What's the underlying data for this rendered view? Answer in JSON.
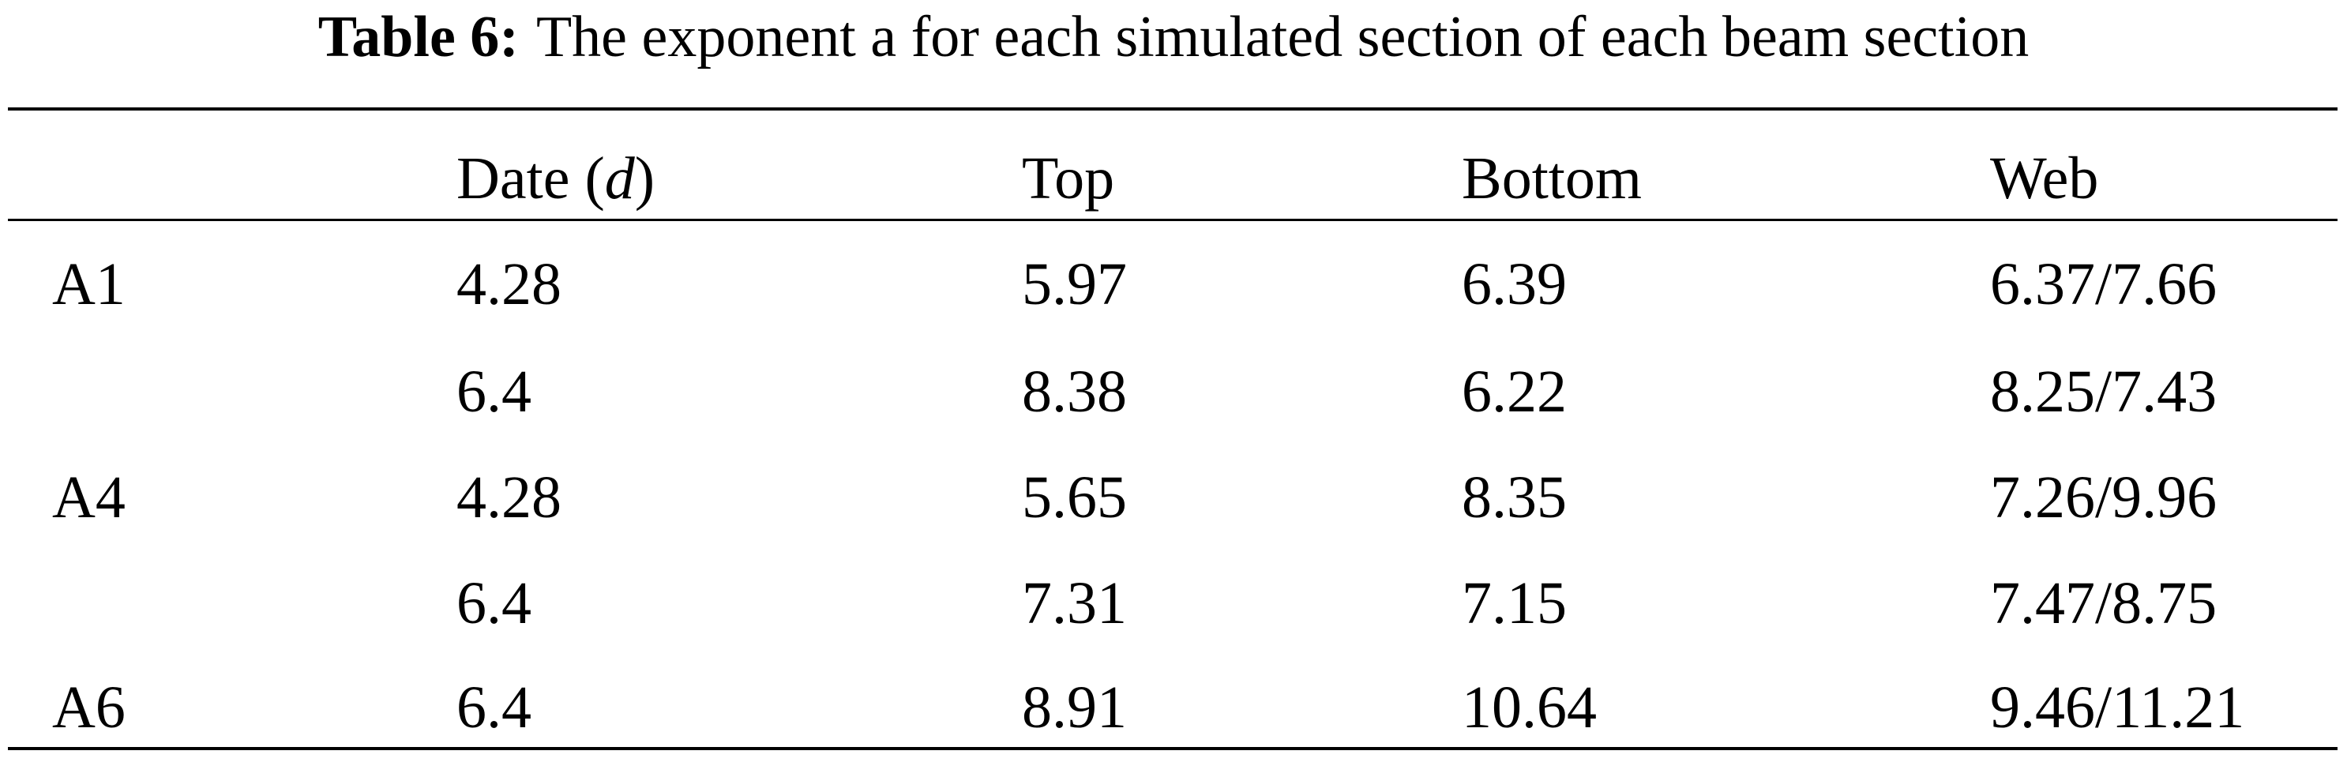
{
  "table": {
    "caption_label": "Table 6:",
    "caption": "The exponent a for each simulated section of each beam section",
    "header": [
      null,
      [
        "Date (",
        "d",
        ")"
      ],
      "Top",
      "Bottom",
      "Web"
    ],
    "rows": [
      [
        "A1",
        "4.28",
        "5.97",
        "6.39",
        "6.37/7.66"
      ],
      [
        null,
        "6.4",
        "8.38",
        "6.22",
        "8.25/7.43"
      ],
      [
        "A4",
        "4.28",
        "5.65",
        "8.35",
        "7.26/9.96"
      ],
      [
        null,
        "6.4",
        "7.31",
        "7.15",
        "7.47/8.75"
      ],
      [
        "A6",
        "6.4",
        "8.91",
        "10.64",
        "9.46/11.21"
      ]
    ]
  }
}
